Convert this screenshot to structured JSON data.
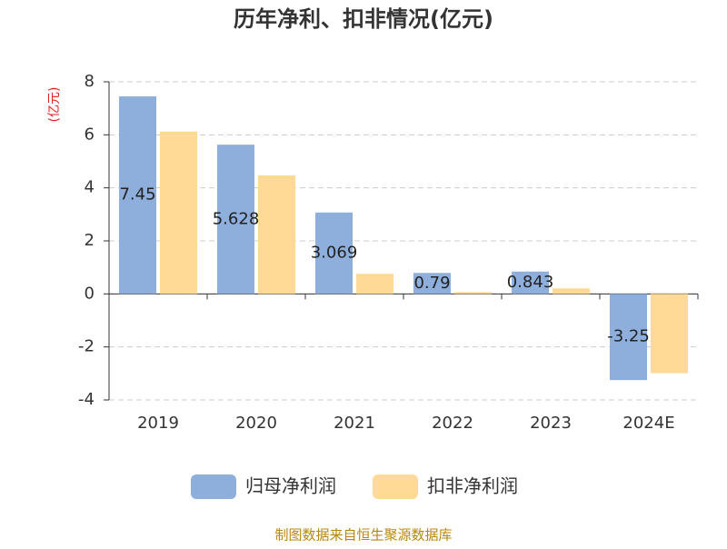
{
  "chart_data": {
    "type": "bar",
    "title": "历年净利、扣非情况(亿元)",
    "y_label": "(亿元)",
    "categories": [
      "2019",
      "2020",
      "2021",
      "2022",
      "2023",
      "2024E"
    ],
    "series": [
      {
        "name": "归母净利润",
        "color": "#8eaedb",
        "values": [
          7.45,
          5.628,
          3.069,
          0.79,
          0.843,
          -3.25
        ]
      },
      {
        "name": "扣非净利润",
        "color": "#ffd996",
        "values": [
          6.12,
          4.47,
          0.76,
          0.07,
          0.21,
          -2.99
        ]
      }
    ],
    "ylim": [
      -4,
      8
    ],
    "yticks": [
      -4,
      -2,
      0,
      2,
      4,
      6,
      8
    ],
    "grid": true,
    "source": "制图数据来自恒生聚源数据库"
  }
}
